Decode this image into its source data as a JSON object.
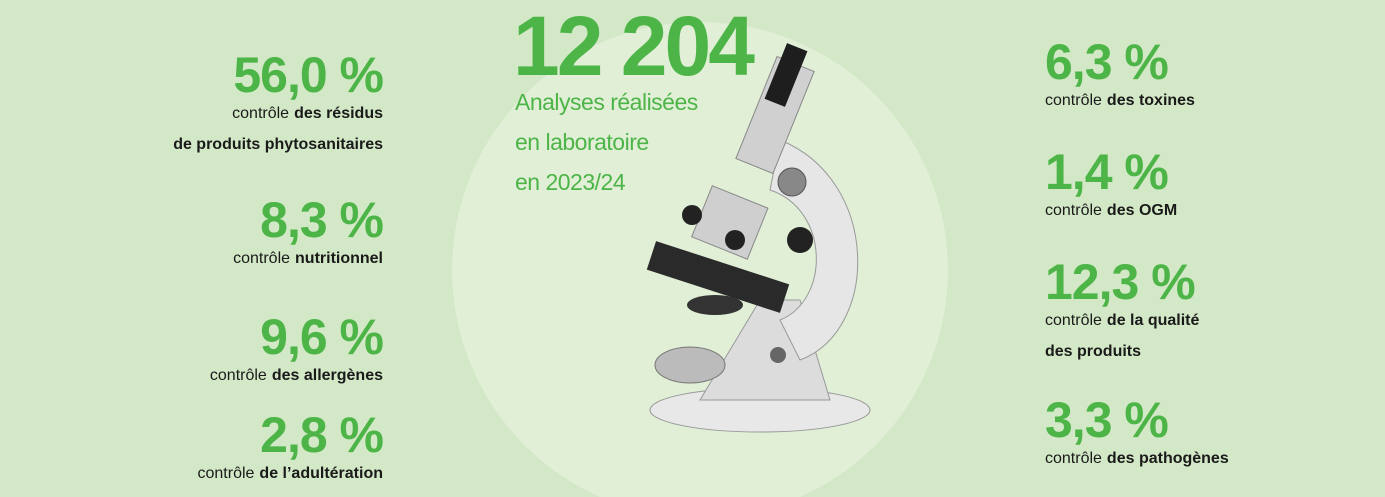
{
  "headline": {
    "value": "12 204",
    "lines": [
      "Analyses réalisées",
      "en laboratoire",
      "en 2023/24"
    ]
  },
  "left_items": [
    {
      "value": "56,0 %",
      "prefix": "contrôle",
      "bold_lines": [
        "des résidus",
        "de produits phytosanitaires"
      ]
    },
    {
      "value": "8,3 %",
      "prefix": "contrôle",
      "bold_lines": [
        "nutritionnel"
      ]
    },
    {
      "value": "9,6 %",
      "prefix": "contrôle",
      "bold_lines": [
        "des allergènes"
      ]
    },
    {
      "value": "2,8 %",
      "prefix": "contrôle",
      "bold_lines": [
        "de l’adultération"
      ]
    }
  ],
  "right_items": [
    {
      "value": "6,3 %",
      "prefix": "contrôle",
      "bold_lines": [
        "des toxines"
      ]
    },
    {
      "value": "1,4 %",
      "prefix": "contrôle",
      "bold_lines": [
        "des OGM"
      ]
    },
    {
      "value": "12,3 %",
      "prefix": "contrôle",
      "bold_lines": [
        "de la qualité",
        "des produits"
      ]
    },
    {
      "value": "3,3 %",
      "prefix": "contrôle",
      "bold_lines": [
        "des pathogènes"
      ]
    }
  ]
}
